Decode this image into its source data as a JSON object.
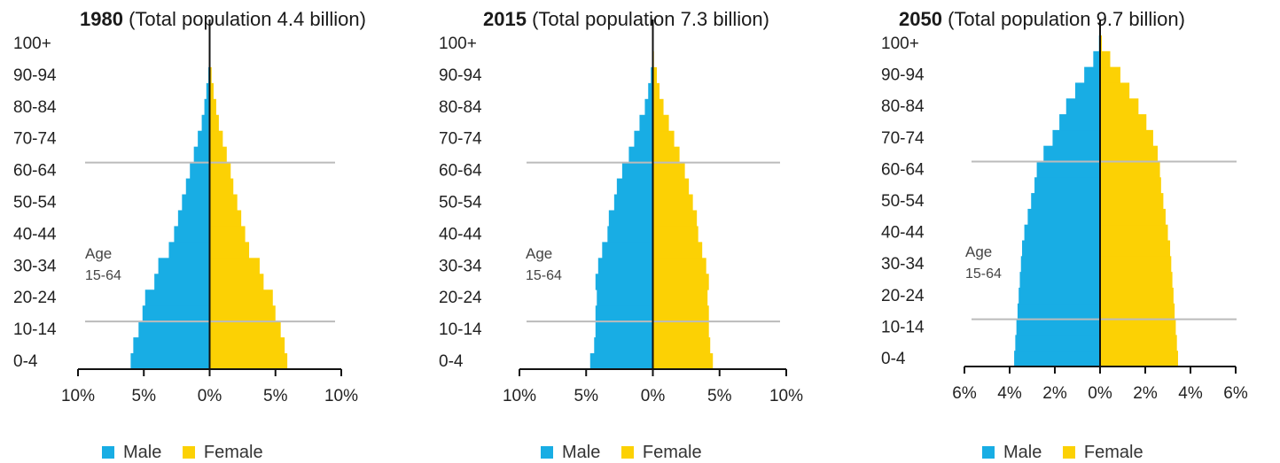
{
  "chart_data": [
    {
      "type": "bar",
      "orientation": "horizontal",
      "title_bold": "1980",
      "title": "(Total population 4.4 billion)",
      "age_groups": [
        "0-4",
        "5-9",
        "10-14",
        "15-19",
        "20-24",
        "25-29",
        "30-34",
        "35-39",
        "40-44",
        "45-49",
        "50-54",
        "55-59",
        "60-64",
        "65-69",
        "70-74",
        "75-79",
        "80-84",
        "85-89",
        "90-94",
        "95-99",
        "100+"
      ],
      "ytick_labels": [
        "100+",
        "90-94",
        "80-84",
        "70-74",
        "60-64",
        "50-54",
        "40-44",
        "30-34",
        "20-24",
        "10-14",
        "0-4"
      ],
      "xlim": [
        -10,
        10
      ],
      "xticks": [
        -10,
        -5,
        0,
        5,
        10
      ],
      "xtick_labels": [
        "10%",
        "5%",
        "0%",
        "5%",
        "10%"
      ],
      "annotation": [
        "Age",
        "15-64"
      ],
      "bracket_groups": [
        "15-19",
        "60-64"
      ],
      "legend": [
        "Male",
        "Female"
      ],
      "legend_position": "bottom",
      "colors": {
        "male": "#18ade4",
        "female": "#fcd104",
        "axis": "#111111",
        "reference": "#bbbbbb"
      },
      "series": [
        {
          "name": "Male",
          "values": [
            6.0,
            5.8,
            5.4,
            5.1,
            4.9,
            4.2,
            3.9,
            3.1,
            2.7,
            2.4,
            2.1,
            1.8,
            1.5,
            1.2,
            0.9,
            0.6,
            0.4,
            0.25,
            0.1,
            0.03,
            0.01
          ]
        },
        {
          "name": "Female",
          "values": [
            5.9,
            5.7,
            5.4,
            5.0,
            4.8,
            4.1,
            3.8,
            3.0,
            2.7,
            2.4,
            2.1,
            1.8,
            1.6,
            1.3,
            1.0,
            0.7,
            0.5,
            0.3,
            0.15,
            0.05,
            0.01
          ]
        }
      ]
    },
    {
      "type": "bar",
      "orientation": "horizontal",
      "title_bold": "2015",
      "title": "(Total population 7.3 billion)",
      "age_groups": [
        "0-4",
        "5-9",
        "10-14",
        "15-19",
        "20-24",
        "25-29",
        "30-34",
        "35-39",
        "40-44",
        "45-49",
        "50-54",
        "55-59",
        "60-64",
        "65-69",
        "70-74",
        "75-79",
        "80-84",
        "85-89",
        "90-94",
        "95-99",
        "100+"
      ],
      "ytick_labels": [
        "100+",
        "90-94",
        "80-84",
        "70-74",
        "60-64",
        "50-54",
        "40-44",
        "30-34",
        "20-24",
        "10-14",
        "0-4"
      ],
      "xlim": [
        -10,
        10
      ],
      "xticks": [
        -10,
        -5,
        0,
        5,
        10
      ],
      "xtick_labels": [
        "10%",
        "5%",
        "0%",
        "5%",
        "10%"
      ],
      "annotation": [
        "Age",
        "15-64"
      ],
      "bracket_groups": [
        "15-19",
        "60-64"
      ],
      "legend": [
        "Male",
        "Female"
      ],
      "legend_position": "bottom",
      "colors": {
        "male": "#18ade4",
        "female": "#fcd104",
        "axis": "#111111",
        "reference": "#bbbbbb"
      },
      "series": [
        {
          "name": "Male",
          "values": [
            4.7,
            4.4,
            4.3,
            4.3,
            4.2,
            4.3,
            4.1,
            3.8,
            3.4,
            3.3,
            2.9,
            2.7,
            2.3,
            1.8,
            1.4,
            1.0,
            0.6,
            0.35,
            0.15,
            0.04,
            0.01
          ]
        },
        {
          "name": "Female",
          "values": [
            4.5,
            4.3,
            4.2,
            4.2,
            4.1,
            4.2,
            4.0,
            3.7,
            3.4,
            3.3,
            3.0,
            2.7,
            2.4,
            2.0,
            1.6,
            1.2,
            0.8,
            0.5,
            0.3,
            0.08,
            0.01
          ]
        }
      ]
    },
    {
      "type": "bar",
      "orientation": "horizontal",
      "title_bold": "2050",
      "title": "(Total population 9.7 billion)",
      "age_groups": [
        "0-4",
        "5-9",
        "10-14",
        "15-19",
        "20-24",
        "25-29",
        "30-34",
        "35-39",
        "40-44",
        "45-49",
        "50-54",
        "55-59",
        "60-64",
        "65-69",
        "70-74",
        "75-79",
        "80-84",
        "85-89",
        "90-94",
        "95-99",
        "100+"
      ],
      "ytick_labels": [
        "100+",
        "90-94",
        "80-84",
        "70-74",
        "60-64",
        "50-54",
        "40-44",
        "30-34",
        "20-24",
        "10-14",
        "0-4"
      ],
      "xlim": [
        -6,
        6
      ],
      "xticks": [
        -6,
        -4,
        -2,
        0,
        2,
        4,
        6
      ],
      "xtick_labels": [
        "6%",
        "4%",
        "2%",
        "0%",
        "2%",
        "4%",
        "6%"
      ],
      "annotation": [
        "Age",
        "15-64"
      ],
      "bracket_groups": [
        "15-19",
        "60-64"
      ],
      "legend": [
        "Male",
        "Female"
      ],
      "legend_position": "bottom",
      "colors": {
        "male": "#18ade4",
        "female": "#fcd104",
        "axis": "#111111",
        "reference": "#bbbbbb"
      },
      "series": [
        {
          "name": "Male",
          "values": [
            3.8,
            3.75,
            3.7,
            3.65,
            3.6,
            3.55,
            3.5,
            3.45,
            3.35,
            3.2,
            3.05,
            2.9,
            2.8,
            2.5,
            2.1,
            1.8,
            1.5,
            1.1,
            0.7,
            0.3,
            0.05
          ]
        },
        {
          "name": "Female",
          "values": [
            3.45,
            3.4,
            3.35,
            3.3,
            3.25,
            3.2,
            3.15,
            3.1,
            3.0,
            2.9,
            2.8,
            2.7,
            2.65,
            2.55,
            2.35,
            2.05,
            1.7,
            1.3,
            0.9,
            0.45,
            0.08
          ]
        }
      ]
    }
  ]
}
